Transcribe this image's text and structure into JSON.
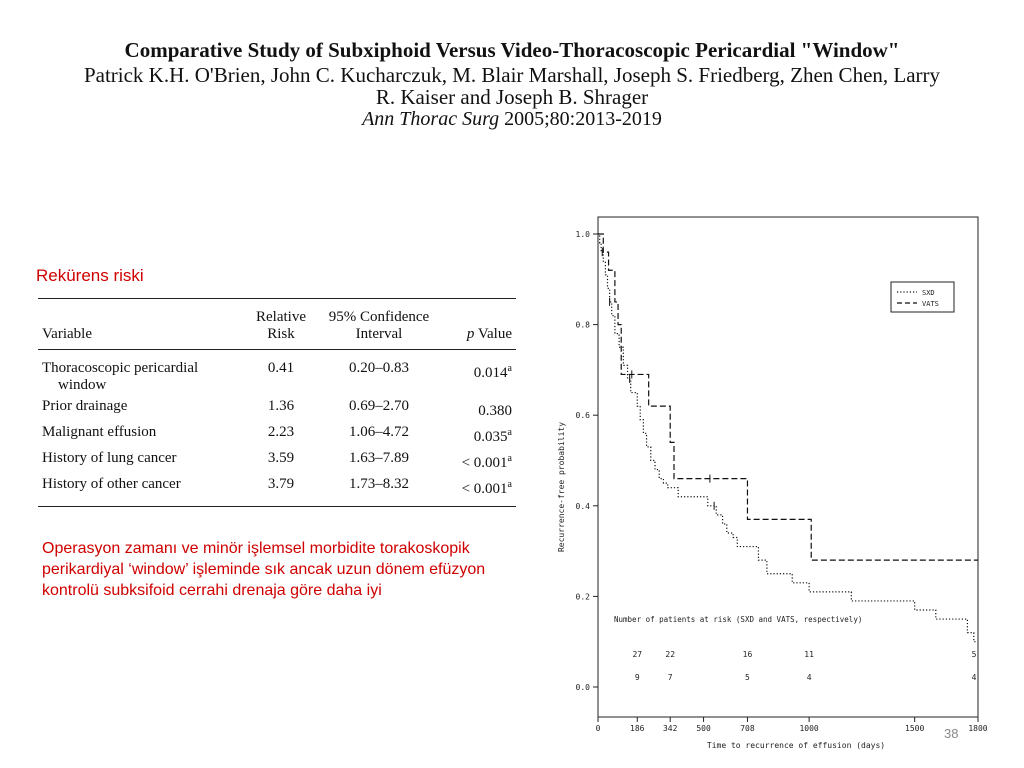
{
  "header": {
    "title": "Comparative Study of Subxiphoid Versus Video-Thoracoscopic Pericardial \"Window\"",
    "authors": "Patrick K.H. O'Brien, John C. Kucharczuk, M. Blair Marshall, Joseph S. Friedberg, Zhen Chen, Larry R. Kaiser and Joseph B. Shrager",
    "journal_name": "Ann Thorac Surg",
    "journal_ref": " 2005;80:2013-2019"
  },
  "risk_label": "Rekürens riski",
  "risk_table": {
    "headers": {
      "variable": "Variable",
      "relative_risk_1": "Relative",
      "relative_risk_2": "Risk",
      "ci_1": "95% Confidence",
      "ci_2": "Interval",
      "p_value_italic": "p",
      "p_value_rest": " Value"
    },
    "rows": [
      {
        "variable_1": "Thoracoscopic pericardial",
        "variable_2": "window",
        "rr": "0.41",
        "ci": "0.20–0.83",
        "p": "0.014",
        "p_sup": "a"
      },
      {
        "variable_1": "Prior drainage",
        "variable_2": "",
        "rr": "1.36",
        "ci": "0.69–2.70",
        "p": "0.380",
        "p_sup": ""
      },
      {
        "variable_1": "Malignant effusion",
        "variable_2": "",
        "rr": "2.23",
        "ci": "1.06–4.72",
        "p": "0.035",
        "p_sup": "a"
      },
      {
        "variable_1": "History of lung cancer",
        "variable_2": "",
        "rr": "3.59",
        "ci": "1.63–7.89",
        "p": "< 0.001",
        "p_sup": "a"
      },
      {
        "variable_1": "History of other cancer",
        "variable_2": "",
        "rr": "3.79",
        "ci": "1.73–8.32",
        "p": "< 0.001",
        "p_sup": "a"
      }
    ]
  },
  "note": "Operasyon zamanı ve minör işlemsel morbidite torakoskopik perikardiyal ‘window’ işleminde sık ancak uzun dönem efüzyon kontrolü subksifoid cerrahi drenaja göre daha iyi",
  "page_number": "38",
  "chart_data": {
    "type": "line",
    "xlabel": "Time to recurrence of effusion (days)",
    "ylabel": "Recurrence-free probability",
    "xlim": [
      0,
      1800
    ],
    "ylim": [
      0,
      1.0
    ],
    "x_ticks": [
      "0",
      "186",
      "342",
      "500",
      "708",
      "1000",
      "1500",
      "1800"
    ],
    "x_tick_values": [
      0,
      186,
      342,
      500,
      708,
      1000,
      1500,
      1800
    ],
    "y_ticks": [
      "0.0",
      "0.2",
      "0.4",
      "0.6",
      "0.8",
      "1.0"
    ],
    "y_tick_values": [
      0,
      0.2,
      0.4,
      0.6,
      0.8,
      1.0
    ],
    "grid": false,
    "legend_position": "top-right",
    "series": [
      {
        "name": "SXD",
        "style": "dotted",
        "x": [
          0,
          8,
          15,
          25,
          35,
          45,
          55,
          65,
          80,
          100,
          120,
          140,
          155,
          170,
          186,
          200,
          215,
          230,
          250,
          270,
          290,
          310,
          330,
          355,
          380,
          420,
          470,
          520,
          560,
          590,
          610,
          640,
          660,
          690,
          720,
          760,
          800,
          860,
          920,
          1000,
          1100,
          1200,
          1240,
          1500,
          1550,
          1600,
          1650,
          1750,
          1780,
          1800
        ],
        "y": [
          1.0,
          0.98,
          0.96,
          0.94,
          0.91,
          0.88,
          0.85,
          0.82,
          0.78,
          0.75,
          0.71,
          0.68,
          0.65,
          0.65,
          0.62,
          0.59,
          0.56,
          0.53,
          0.5,
          0.48,
          0.46,
          0.45,
          0.44,
          0.44,
          0.42,
          0.42,
          0.42,
          0.4,
          0.38,
          0.36,
          0.34,
          0.33,
          0.31,
          0.31,
          0.31,
          0.28,
          0.25,
          0.25,
          0.23,
          0.21,
          0.21,
          0.19,
          0.19,
          0.17,
          0.17,
          0.15,
          0.15,
          0.12,
          0.1,
          0.1
        ],
        "censored_x": [
          20,
          55,
          150,
          550
        ]
      },
      {
        "name": "VATS",
        "style": "dashed",
        "x": [
          0,
          25,
          50,
          80,
          95,
          110,
          140,
          200,
          240,
          290,
          330,
          342,
          360,
          560,
          708,
          1000,
          1010,
          1100,
          1500,
          1800
        ],
        "y": [
          1.0,
          0.96,
          0.92,
          0.85,
          0.8,
          0.69,
          0.69,
          0.69,
          0.62,
          0.62,
          0.62,
          0.54,
          0.46,
          0.46,
          0.37,
          0.37,
          0.28,
          0.28,
          0.28,
          0.28
        ],
        "censored_x": [
          160,
          530
        ]
      }
    ],
    "risk_table": {
      "title": "Number of patients at risk (SXD and VATS, respectively)",
      "times": [
        186,
        342,
        708,
        1000,
        1800
      ],
      "sxd": [
        "27",
        "22",
        "16",
        "11",
        "5"
      ],
      "vats": [
        "9",
        "7",
        "5",
        "4",
        "4"
      ]
    }
  }
}
